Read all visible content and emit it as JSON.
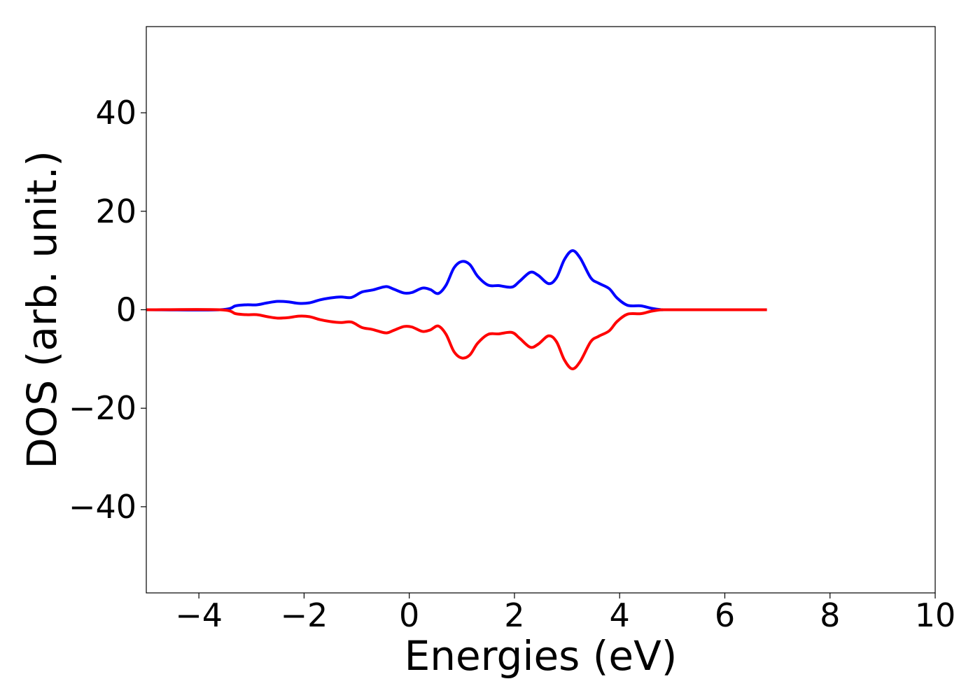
{
  "chart_data": {
    "type": "line",
    "title": "",
    "xlabel": "Energies (eV)",
    "ylabel": "DOS (arb. unit.)",
    "xlim": [
      -5,
      10
    ],
    "ylim": [
      -57.5,
      57.5
    ],
    "xticks": [
      -4,
      -2,
      0,
      2,
      4,
      6,
      8,
      10
    ],
    "xtick_labels": [
      "−4",
      "−2",
      "0",
      "2",
      "4",
      "6",
      "8",
      "10"
    ],
    "yticks": [
      40,
      20,
      0,
      -20,
      -40
    ],
    "ytick_labels": [
      "40",
      "20",
      "0",
      "−20",
      "−40"
    ],
    "grid": false,
    "legend": "none",
    "series": [
      {
        "color": "#0000ff",
        "x": [
          -5.0,
          -3.6,
          -3.3,
          -3.1,
          -2.9,
          -2.7,
          -2.5,
          -2.3,
          -2.1,
          -1.9,
          -1.7,
          -1.5,
          -1.3,
          -1.1,
          -0.9,
          -0.7,
          -0.45,
          -0.3,
          -0.1,
          0.05,
          0.25,
          0.4,
          0.55,
          0.7,
          0.85,
          1.0,
          1.15,
          1.3,
          1.5,
          1.7,
          1.95,
          2.1,
          2.3,
          2.45,
          2.65,
          2.8,
          2.95,
          3.1,
          3.25,
          3.45,
          3.6,
          3.8,
          3.95,
          4.15,
          4.4,
          4.6,
          4.8,
          5.0,
          6.8
        ],
        "y": [
          0,
          0,
          0.8,
          1.0,
          1.0,
          1.4,
          1.7,
          1.6,
          1.3,
          1.4,
          2.0,
          2.4,
          2.6,
          2.5,
          3.6,
          4.0,
          4.7,
          4.2,
          3.4,
          3.5,
          4.4,
          4.1,
          3.3,
          5.0,
          8.5,
          9.8,
          9.2,
          6.8,
          5.0,
          4.9,
          4.6,
          5.8,
          7.6,
          7.0,
          5.3,
          6.5,
          10.2,
          12.0,
          10.5,
          6.5,
          5.4,
          4.3,
          2.4,
          0.9,
          0.8,
          0.3,
          0,
          0,
          0
        ]
      },
      {
        "color": "#ff0000",
        "x": [
          -5.0,
          -3.6,
          -3.3,
          -3.1,
          -2.9,
          -2.7,
          -2.5,
          -2.3,
          -2.1,
          -1.9,
          -1.7,
          -1.5,
          -1.3,
          -1.1,
          -0.9,
          -0.7,
          -0.45,
          -0.3,
          -0.1,
          0.05,
          0.25,
          0.4,
          0.55,
          0.7,
          0.85,
          1.0,
          1.15,
          1.3,
          1.5,
          1.7,
          1.95,
          2.1,
          2.3,
          2.45,
          2.65,
          2.8,
          2.95,
          3.1,
          3.25,
          3.45,
          3.6,
          3.8,
          3.95,
          4.15,
          4.4,
          4.6,
          4.8,
          5.0,
          6.8
        ],
        "y": [
          0,
          0,
          -0.8,
          -1.0,
          -1.0,
          -1.4,
          -1.7,
          -1.6,
          -1.3,
          -1.4,
          -2.0,
          -2.4,
          -2.6,
          -2.5,
          -3.6,
          -4.0,
          -4.7,
          -4.2,
          -3.4,
          -3.5,
          -4.4,
          -4.1,
          -3.3,
          -5.0,
          -8.5,
          -9.8,
          -9.2,
          -6.8,
          -5.0,
          -4.9,
          -4.6,
          -5.8,
          -7.6,
          -7.0,
          -5.3,
          -6.5,
          -10.2,
          -12.0,
          -10.5,
          -6.5,
          -5.4,
          -4.3,
          -2.4,
          -0.9,
          -0.8,
          -0.3,
          0,
          0,
          0
        ]
      }
    ]
  }
}
